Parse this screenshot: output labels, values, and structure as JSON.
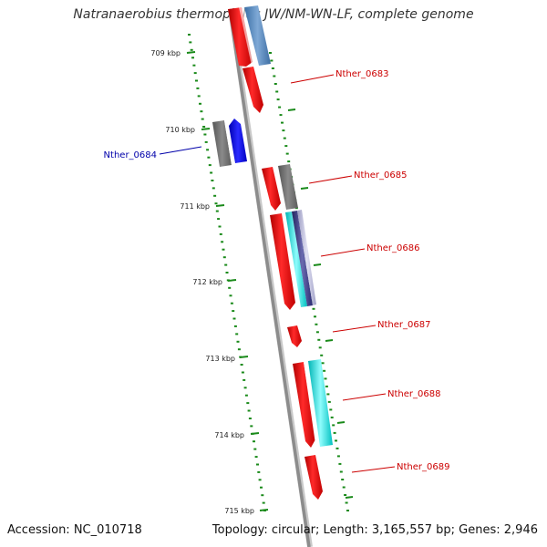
{
  "title": "Natranaerobius thermophilus JW/NM-WN-LF, complete genome",
  "footer": {
    "accession": "Accession: NC_010718",
    "summary": "Topology: circular; Length: 3,165,557 bp; Genes: 2,946"
  },
  "colors": {
    "forward_gene": "#ff0000",
    "reverse_gene": "#0000ff",
    "other_feature": "#808080",
    "steelblue_feature": "#4f86bf",
    "cyan_feature": "#00e5e5",
    "navy_feature": "#2e2e7a",
    "tick": "#1a8a1a",
    "backbone": "#8c8c8c",
    "forward_label": "#cc0000",
    "reverse_label": "#0000aa"
  },
  "ticks": [
    "709 kbp",
    "710 kbp",
    "711 kbp",
    "712 kbp",
    "713 kbp",
    "714 kbp",
    "715 kbp"
  ],
  "gene_labels": [
    {
      "text": "Nther_0683",
      "strand": "forward"
    },
    {
      "text": "Nther_0684",
      "strand": "reverse"
    },
    {
      "text": "Nther_0685",
      "strand": "forward"
    },
    {
      "text": "Nther_0686",
      "strand": "forward"
    },
    {
      "text": "Nther_0687",
      "strand": "forward"
    },
    {
      "text": "Nther_0688",
      "strand": "forward"
    },
    {
      "text": "Nther_0689",
      "strand": "forward"
    }
  ]
}
